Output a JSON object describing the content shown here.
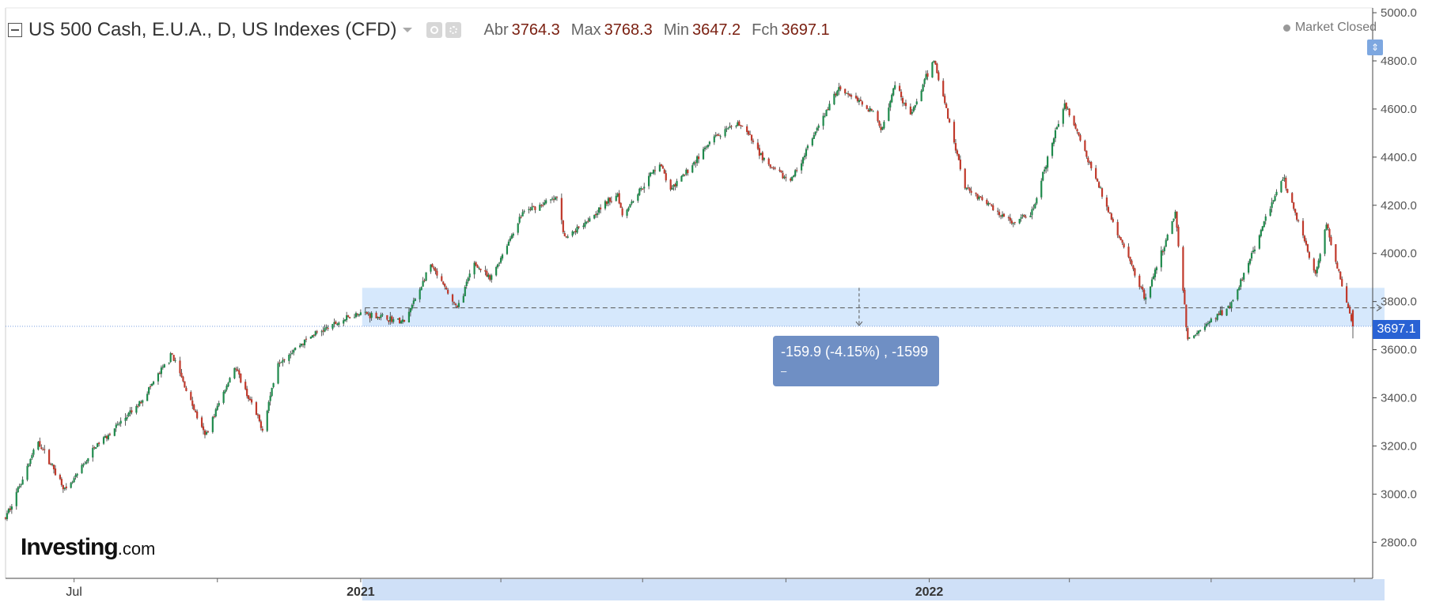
{
  "header": {
    "title": "US 500 Cash, E.U.A., D, US Indexes (CFD)",
    "ohlc": [
      {
        "label": "Abr",
        "value": "3764.3"
      },
      {
        "label": "Max",
        "value": "3768.3"
      },
      {
        "label": "Min",
        "value": "3647.2"
      },
      {
        "label": "Fch",
        "value": "3697.1"
      }
    ],
    "market_status": "Market Closed"
  },
  "watermark": {
    "brand": "Investing",
    "suffix": ".com"
  },
  "measure_tooltip": {
    "line1": "-159.9 (-4.15%) , -1599",
    "line2": "–"
  },
  "last_price_label": "3697.1",
  "colors": {
    "up": "#1f8a4c",
    "down": "#c0392b",
    "zone_fill": "#d6e8fc",
    "axis_highlight": "#cfe0f7",
    "price_tag": "#2962d4",
    "tooltip": "#6f8fc4"
  },
  "chart_data": {
    "type": "candlestick",
    "instrument": "US 500 Cash",
    "interval": "D",
    "ylim": [
      2650,
      5020
    ],
    "y_ticks": [
      2800,
      3000,
      3200,
      3400,
      3600,
      3800,
      4000,
      4200,
      4400,
      4600,
      4800,
      5000
    ],
    "y_tick_labels": [
      "2800.0",
      "3000.0",
      "3200.0",
      "3400.0",
      "3600.0",
      "3800.0",
      "4000.0",
      "4200.0",
      "4400.0",
      "4600.0",
      "4800.0",
      "5000.0"
    ],
    "x_range": [
      "2020-05-18",
      "2022-09-30"
    ],
    "x_labels": [
      {
        "date": "2020-07-01",
        "label": "Jul",
        "bold": false
      },
      {
        "date": "2021-01-01",
        "label": "2021",
        "bold": true
      },
      {
        "date": "2022-01-01",
        "label": "2022",
        "bold": true
      }
    ],
    "x_minor_ticks": [
      "2020-10-01",
      "2021-04-01",
      "2021-07-01",
      "2021-10-01",
      "2022-04-01",
      "2022-07-01",
      "2022-10-01"
    ],
    "path_points": [
      [
        "2020-05-18",
        2900
      ],
      [
        "2020-06-08",
        3220
      ],
      [
        "2020-06-26",
        3010
      ],
      [
        "2020-07-15",
        3200
      ],
      [
        "2020-08-10",
        3360
      ],
      [
        "2020-09-02",
        3580
      ],
      [
        "2020-09-23",
        3240
      ],
      [
        "2020-10-12",
        3530
      ],
      [
        "2020-10-30",
        3270
      ],
      [
        "2020-11-09",
        3550
      ],
      [
        "2020-12-01",
        3660
      ],
      [
        "2020-12-31",
        3756
      ],
      [
        "2021-01-29",
        3714
      ],
      [
        "2021-02-15",
        3950
      ],
      [
        "2021-03-04",
        3770
      ],
      [
        "2021-03-15",
        3960
      ],
      [
        "2021-03-25",
        3890
      ],
      [
        "2021-04-15",
        4170
      ],
      [
        "2021-05-07",
        4230
      ],
      [
        "2021-05-12",
        4060
      ],
      [
        "2021-06-15",
        4250
      ],
      [
        "2021-06-18",
        4160
      ],
      [
        "2021-07-12",
        4380
      ],
      [
        "2021-07-19",
        4260
      ],
      [
        "2021-08-16",
        4480
      ],
      [
        "2021-09-02",
        4540
      ],
      [
        "2021-09-20",
        4360
      ],
      [
        "2021-10-04",
        4300
      ],
      [
        "2021-11-04",
        4690
      ],
      [
        "2021-11-26",
        4590
      ],
      [
        "2021-12-01",
        4510
      ],
      [
        "2021-12-10",
        4710
      ],
      [
        "2021-12-20",
        4570
      ],
      [
        "2022-01-04",
        4808
      ],
      [
        "2022-01-24",
        4280
      ],
      [
        "2022-02-24",
        4120
      ],
      [
        "2022-03-08",
        4170
      ],
      [
        "2022-03-29",
        4630
      ],
      [
        "2022-04-29",
        4130
      ],
      [
        "2022-05-20",
        3810
      ],
      [
        "2022-06-08",
        4170
      ],
      [
        "2022-06-16",
        3640
      ],
      [
        "2022-07-14",
        3790
      ],
      [
        "2022-08-16",
        4320
      ],
      [
        "2022-09-06",
        3910
      ],
      [
        "2022-09-13",
        4120
      ],
      [
        "2022-09-30",
        3697
      ]
    ],
    "highlight_zone": {
      "from": "2021-01-04",
      "to": "2022-09-30",
      "y_low": 3697.1,
      "y_high": 3857
    },
    "measure": {
      "x": "2021-11-17",
      "y_from": 3857,
      "y_to": 3697.1,
      "change": -159.9,
      "change_pct": -4.15,
      "label": "-159.9 (-4.15%) , -1599"
    },
    "dashed_level": 3774,
    "last_price": 3697.1,
    "last_ohlc": {
      "open": 3764.3,
      "high": 3768.3,
      "low": 3647.2,
      "close": 3697.1
    }
  }
}
